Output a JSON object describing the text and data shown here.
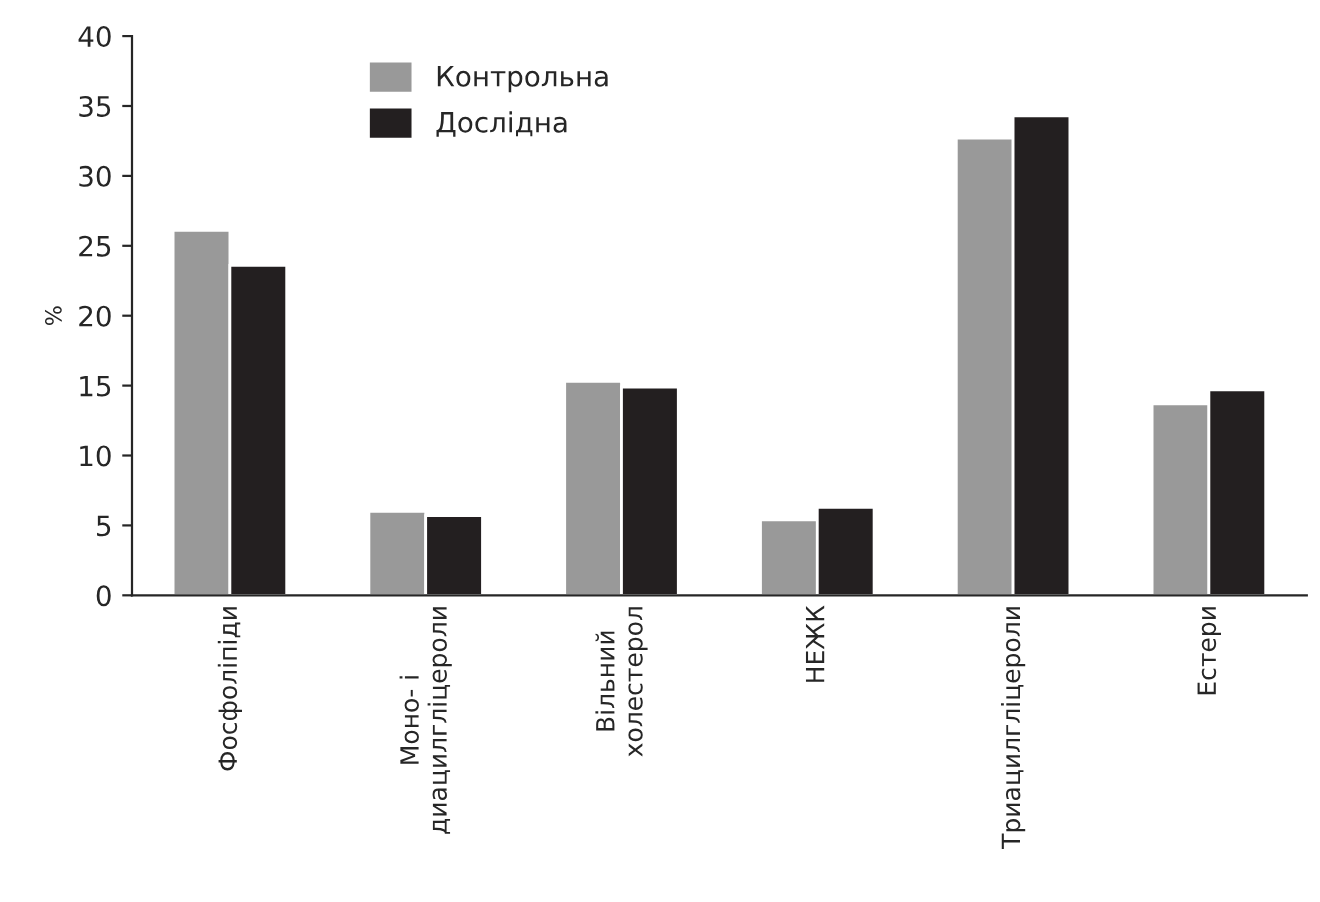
{
  "chart_data": {
    "type": "bar",
    "ylabel": "%",
    "categories": [
      "Фосфоліпіди",
      "Моно- і\nдиацилгліцероли",
      "Вільний\nхолестерол",
      "НЕЖК",
      "Триацилгліцероли",
      "Естери"
    ],
    "series": [
      {
        "name": "Контрольна",
        "color": "#999999",
        "values": [
          26.1,
          6.0,
          15.3,
          5.4,
          32.7,
          13.7
        ]
      },
      {
        "name": "Дослідна",
        "color": "#231f20",
        "values": [
          23.6,
          5.7,
          14.9,
          6.3,
          34.3,
          14.7
        ]
      }
    ],
    "ylim": [
      0,
      40
    ],
    "yticks": [
      0,
      5,
      10,
      15,
      20,
      25,
      30,
      35,
      40
    ],
    "grid": false,
    "legend": "top left"
  }
}
